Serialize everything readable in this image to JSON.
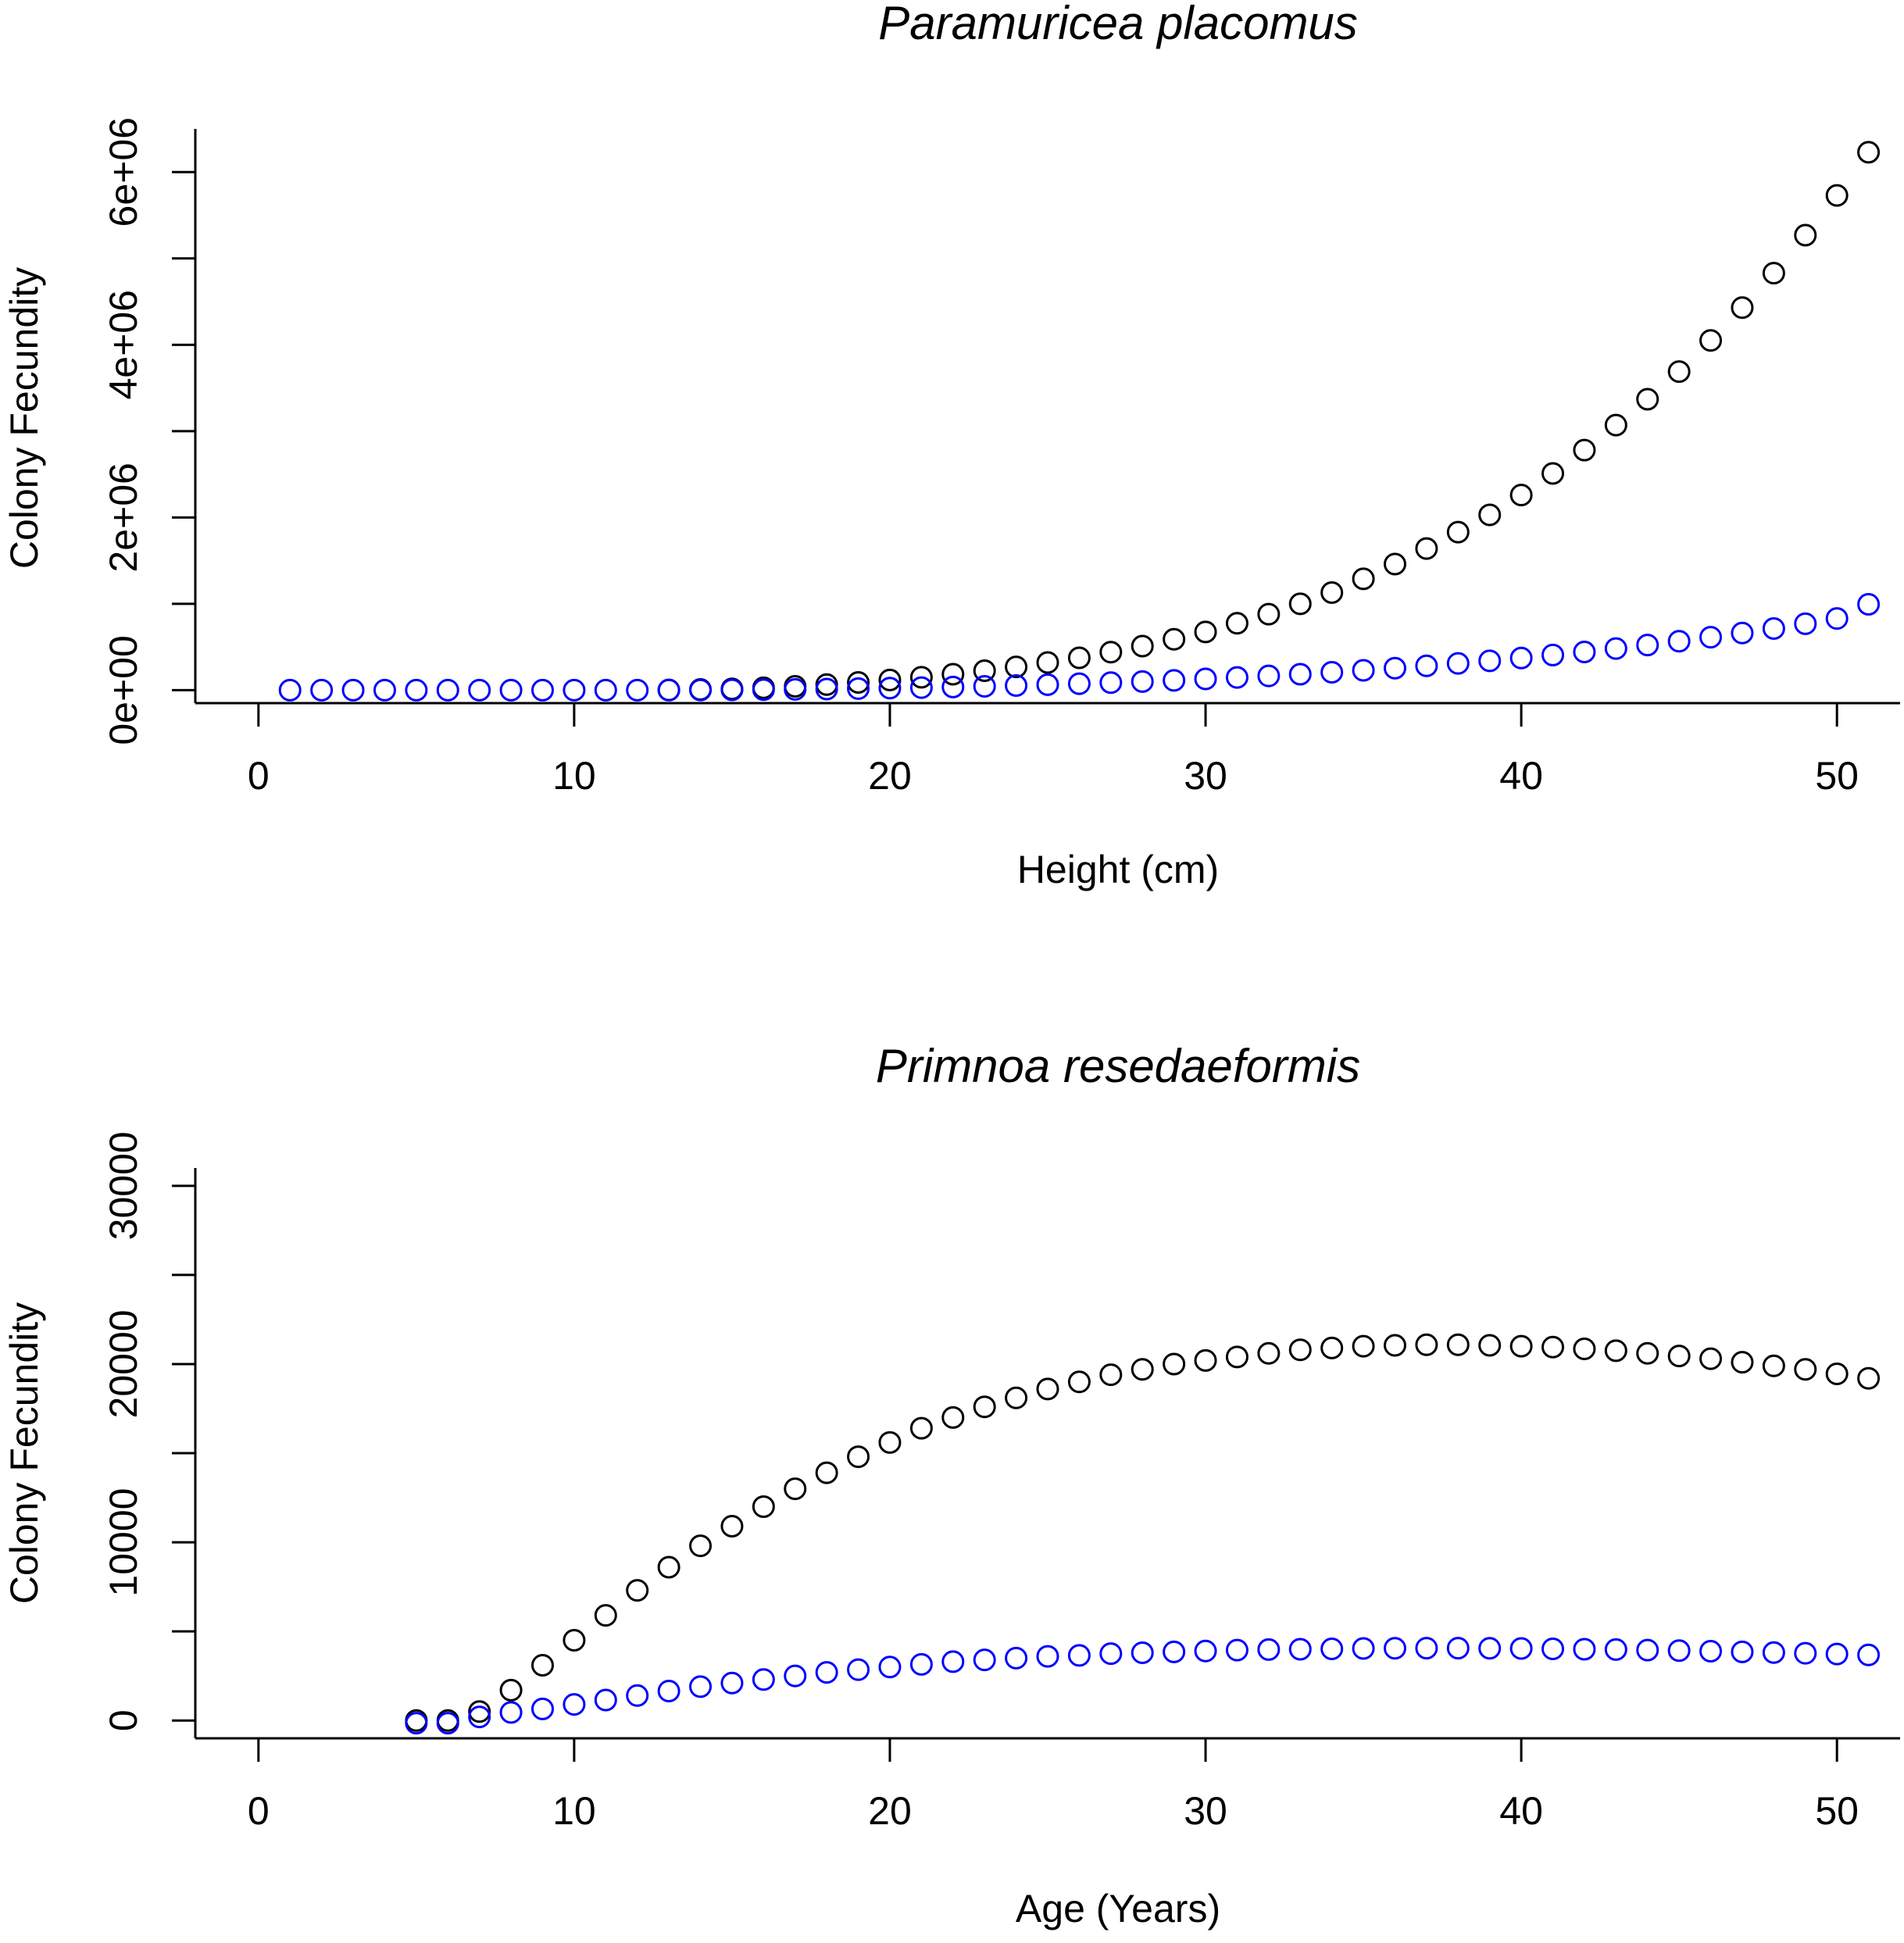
{
  "chart_data": [
    {
      "type": "scatter",
      "title": "Paramuricea placomus",
      "xlabel": "Height (cm)",
      "ylabel": "Colony Fecundity",
      "xlim": [
        -2,
        52
      ],
      "ylim": [
        -150000,
        6500000
      ],
      "xticks": [
        0,
        10,
        20,
        30,
        40,
        50
      ],
      "xtick_labels": [
        "0",
        "10",
        "20",
        "30",
        "40",
        "50"
      ],
      "yticks": [
        0,
        1000000,
        2000000,
        3000000,
        4000000,
        5000000,
        6000000
      ],
      "ytick_labels": [
        "0e+00",
        "",
        "2e+06",
        "",
        "4e+06",
        "",
        "6e+06"
      ],
      "grid": false,
      "series": [
        {
          "name": "black",
          "color": "#000000",
          "x": [
            13,
            14,
            15,
            16,
            17,
            18,
            19,
            20,
            21,
            22,
            23,
            24,
            25,
            26,
            27,
            28,
            29,
            30,
            31,
            32,
            33,
            34,
            35,
            36,
            37,
            38,
            39,
            40,
            41,
            42,
            43,
            44,
            45,
            46,
            47,
            48,
            49,
            50,
            51
          ],
          "y": [
            3000,
            8000,
            15000,
            28000,
            45000,
            65000,
            90000,
            118000,
            150000,
            185000,
            225000,
            270000,
            320000,
            375000,
            440000,
            510000,
            590000,
            675000,
            775000,
            880000,
            1000000,
            1130000,
            1290000,
            1460000,
            1640000,
            1830000,
            2030000,
            2260000,
            2510000,
            2780000,
            3070000,
            3370000,
            3690000,
            4050000,
            4430000,
            4830000,
            5270000,
            5730000,
            6230000
          ]
        },
        {
          "name": "blue",
          "color": "#0000ff",
          "x": [
            1,
            2,
            3,
            4,
            5,
            6,
            7,
            8,
            9,
            10,
            11,
            12,
            13,
            14,
            15,
            16,
            17,
            18,
            19,
            20,
            21,
            22,
            23,
            24,
            25,
            26,
            27,
            28,
            29,
            30,
            31,
            32,
            33,
            34,
            35,
            36,
            37,
            38,
            39,
            40,
            41,
            42,
            43,
            44,
            45,
            46,
            47,
            48,
            49,
            50,
            51
          ],
          "y": [
            0,
            0,
            0,
            0,
            0,
            0,
            0,
            0,
            0,
            0,
            0,
            0,
            1000,
            2000,
            4000,
            6000,
            9000,
            13000,
            18000,
            24000,
            30000,
            37000,
            45000,
            54000,
            64000,
            75000,
            87000,
            100000,
            114000,
            130000,
            147000,
            165000,
            185000,
            207000,
            230000,
            255000,
            282000,
            310000,
            340000,
            372000,
            407000,
            443000,
            482000,
            523000,
            567000,
            613000,
            662000,
            714000,
            770000,
            830000,
            995000
          ]
        }
      ]
    },
    {
      "type": "scatter",
      "title": "Primnoa resedaeformis",
      "xlabel": "Age (Years)",
      "ylabel": "Colony Fecundity",
      "xlim": [
        -2,
        52
      ],
      "ylim": [
        -1000,
        31000
      ],
      "xticks": [
        0,
        10,
        20,
        30,
        40,
        50
      ],
      "xtick_labels": [
        "0",
        "10",
        "20",
        "30",
        "40",
        "50"
      ],
      "yticks": [
        0,
        5000,
        10000,
        15000,
        20000,
        25000,
        30000
      ],
      "ytick_labels": [
        "0",
        "",
        "10000",
        "",
        "20000",
        "",
        "30000"
      ],
      "grid": false,
      "series": [
        {
          "name": "black",
          "color": "#000000",
          "x": [
            5,
            6,
            7,
            8,
            9,
            10,
            11,
            12,
            13,
            14,
            15,
            16,
            17,
            18,
            19,
            20,
            21,
            22,
            23,
            24,
            25,
            26,
            27,
            28,
            29,
            30,
            31,
            32,
            33,
            34,
            35,
            36,
            37,
            38,
            39,
            40,
            41,
            42,
            43,
            44,
            45,
            46,
            47,
            48,
            49,
            50,
            51
          ],
          "y": [
            0,
            0,
            500,
            1700,
            3100,
            4500,
            5900,
            7300,
            8600,
            9800,
            10900,
            12000,
            13000,
            13900,
            14800,
            15600,
            16400,
            17000,
            17600,
            18100,
            18600,
            19000,
            19400,
            19700,
            20000,
            20200,
            20400,
            20600,
            20800,
            20900,
            21000,
            21050,
            21080,
            21080,
            21050,
            21000,
            20950,
            20850,
            20750,
            20600,
            20450,
            20300,
            20100,
            19900,
            19700,
            19450,
            19200
          ]
        },
        {
          "name": "blue",
          "color": "#0000ff",
          "x": [
            5,
            6,
            7,
            8,
            9,
            10,
            11,
            12,
            13,
            14,
            15,
            16,
            17,
            18,
            19,
            20,
            21,
            22,
            23,
            24,
            25,
            26,
            27,
            28,
            29,
            30,
            31,
            32,
            33,
            34,
            35,
            36,
            37,
            38,
            39,
            40,
            41,
            42,
            43,
            44,
            45,
            46,
            47,
            48,
            49,
            50,
            51
          ],
          "y": [
            -150,
            -150,
            200,
            450,
            650,
            900,
            1150,
            1400,
            1650,
            1900,
            2100,
            2300,
            2500,
            2700,
            2850,
            3000,
            3150,
            3300,
            3400,
            3500,
            3600,
            3650,
            3750,
            3800,
            3850,
            3900,
            3950,
            3980,
            4000,
            4020,
            4040,
            4050,
            4060,
            4060,
            4050,
            4040,
            4020,
            4000,
            3980,
            3950,
            3920,
            3890,
            3850,
            3810,
            3770,
            3730,
            3680
          ]
        }
      ]
    }
  ]
}
